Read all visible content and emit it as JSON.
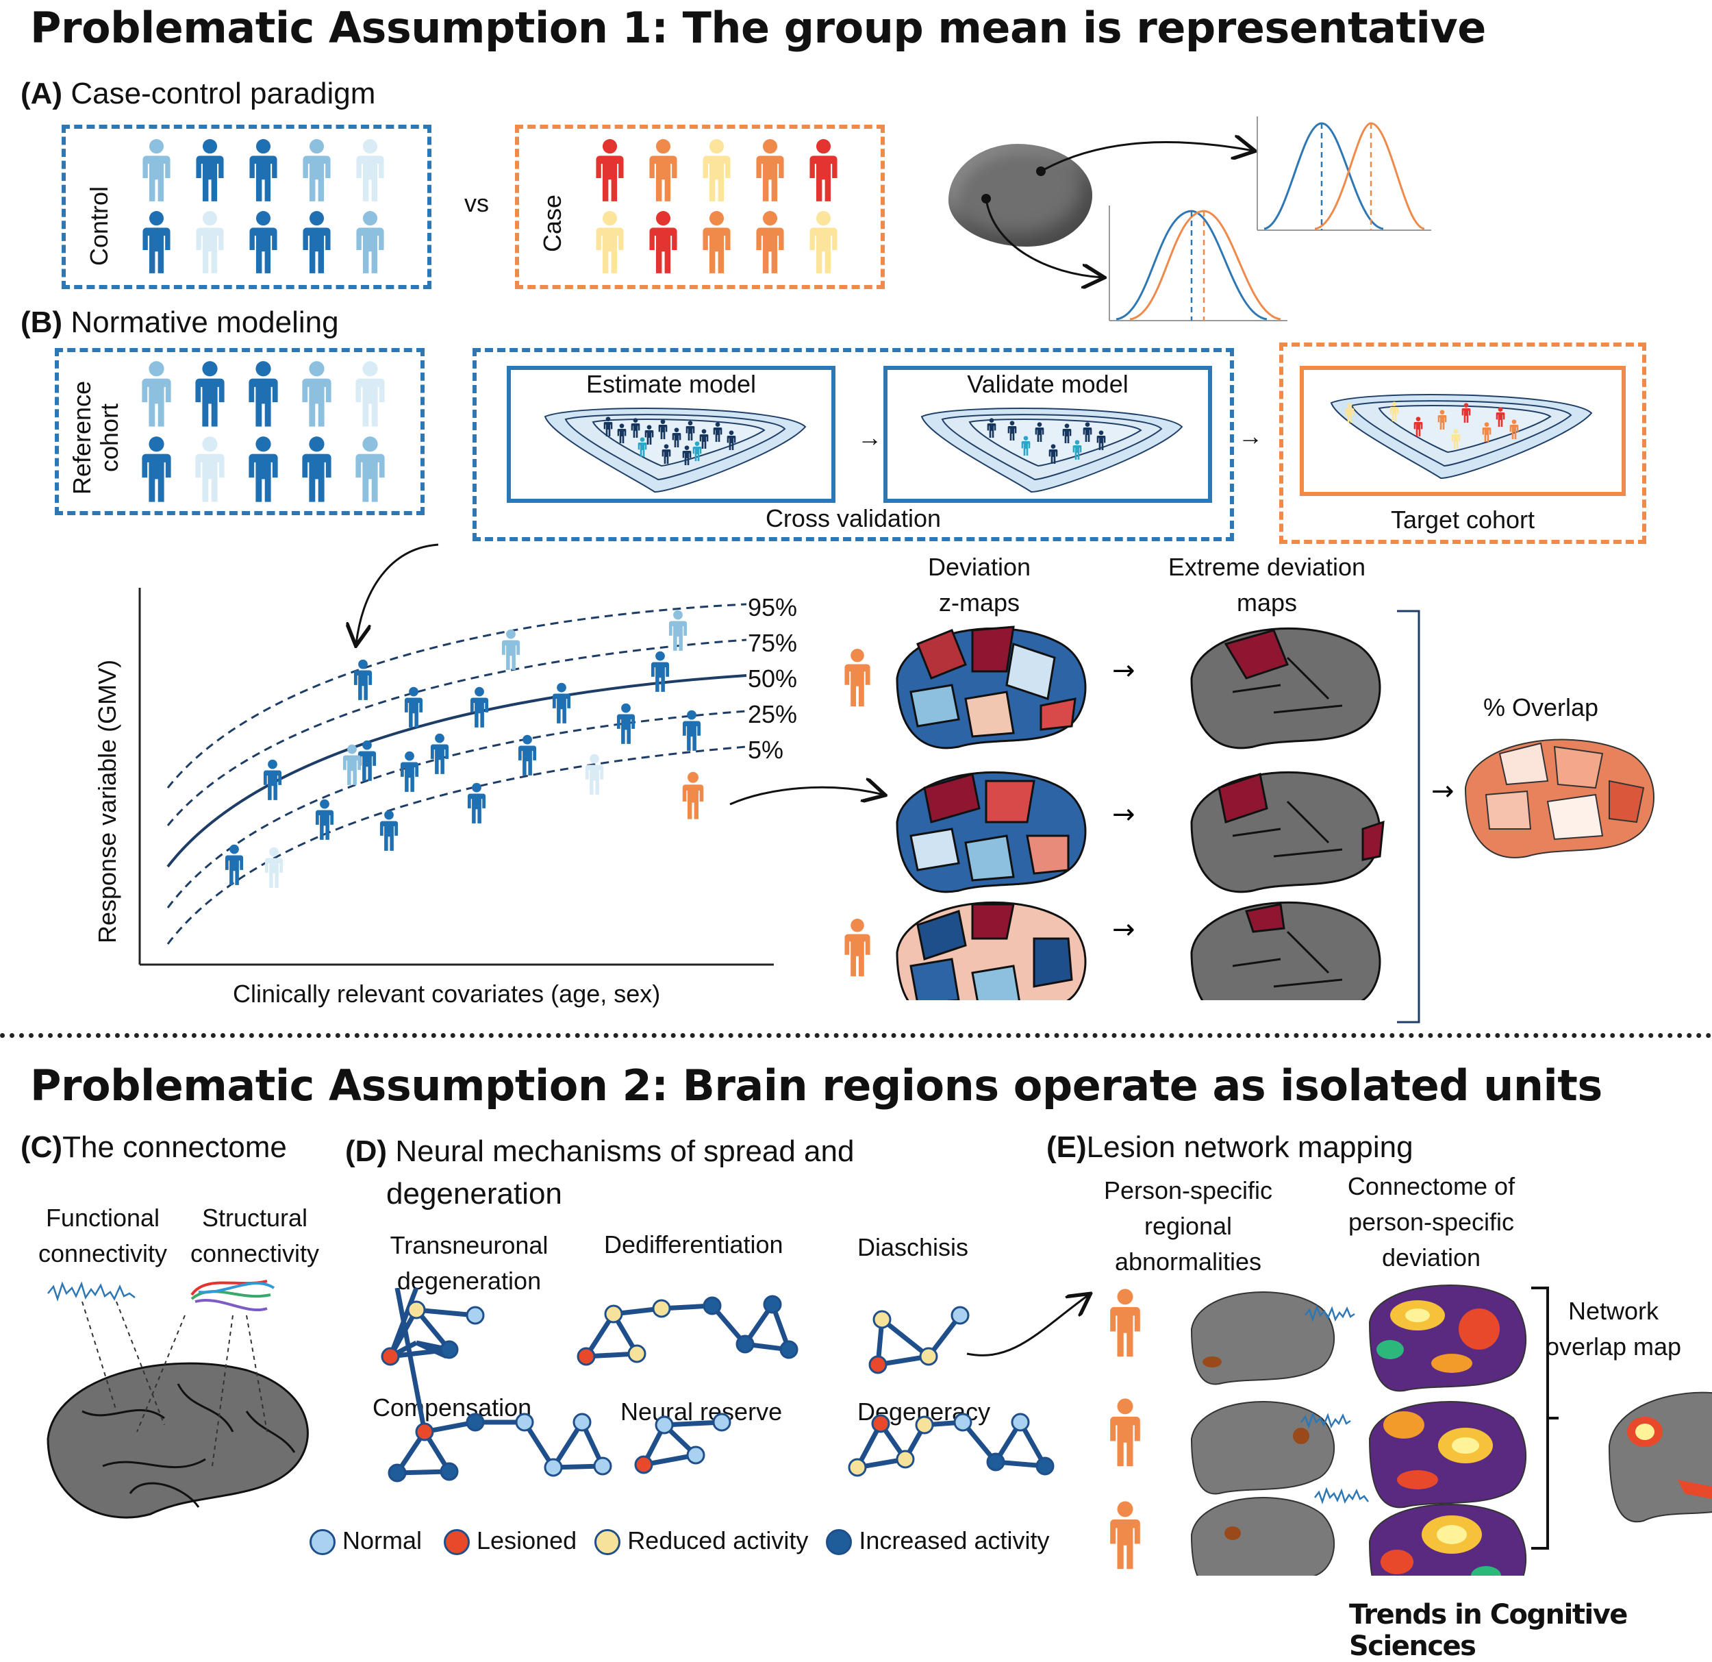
{
  "assumption1": {
    "title": "Problematic Assumption 1: The group mean is representative",
    "panel_a": {
      "letter": "(A)",
      "title": "Case-control paradigm",
      "control_label": "Control",
      "vs_label": "vs",
      "case_label": "Case"
    },
    "panel_b": {
      "letter": "(B)",
      "title": "Normative modeling",
      "reference_label_line1": "Reference",
      "reference_label_line2": "cohort",
      "estimate_label": "Estimate model",
      "validate_label": "Validate model",
      "cross_validation_label": "Cross validation",
      "target_label": "Target cohort",
      "y_axis_label": "Response variable (GMV)",
      "x_axis_label": "Clinically relevant covariates (age, sex)",
      "centile_labels": [
        "95%",
        "75%",
        "50%",
        "25%",
        "5%"
      ],
      "deviation_label_line1": "Deviation",
      "deviation_label_line2": "z-maps",
      "extreme_label_line1": "Extreme deviation",
      "extreme_label_line2": "maps",
      "overlap_label": "% Overlap"
    }
  },
  "assumption2": {
    "title": "Problematic Assumption 2: Brain regions operate as isolated units",
    "panel_c": {
      "letter": "(C)",
      "title": "The connectome",
      "functional_line1": "Functional",
      "functional_line2": "connectivity",
      "structural_line1": "Structural",
      "structural_line2": "connectivity"
    },
    "panel_d": {
      "letter": "(D)",
      "title_line1": "Neural mechanisms of spread and",
      "title_line2": "degeneration",
      "mechanisms": {
        "transneuronal_line1": "Transneuronal",
        "transneuronal_line2": "degeneration",
        "dedifferentiation": "Dedifferentiation",
        "diaschisis": "Diaschisis",
        "compensation": "Compensation",
        "neural_reserve": "Neural reserve",
        "degeneracy": "Degeneracy"
      },
      "legend": [
        "Normal",
        "Lesioned",
        "Reduced activity",
        "Increased activity"
      ]
    },
    "panel_e": {
      "letter": "(E)",
      "title": "Lesion network mapping",
      "person_line1": "Person-specific",
      "person_line2": "regional",
      "person_line3": "abnormalities",
      "connectome_line1": "Connectome of",
      "connectome_line2": "person-specific",
      "connectome_line3": "deviation",
      "network_line1": "Network",
      "network_line2": "overlap map"
    }
  },
  "footer": {
    "journal": "Trends in Cognitive Sciences"
  },
  "colors": {
    "blue_dark": "#1f5f9e",
    "blue_mid": "#2e77b5",
    "blue_light": "#8cc0de",
    "blue_pale": "#dcecf6",
    "orange": "#f08a4b",
    "red": "#e3342f",
    "yellow": "#fce49b",
    "node_normal": "#a9d1f0",
    "node_lesioned": "#e8492a",
    "node_reduced": "#f7e29c",
    "node_increased": "#1e5c9a"
  }
}
